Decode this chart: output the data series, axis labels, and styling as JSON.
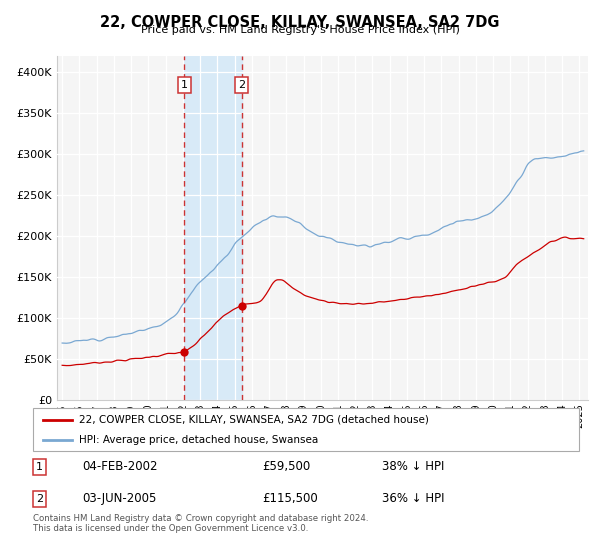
{
  "title": "22, COWPER CLOSE, KILLAY, SWANSEA, SA2 7DG",
  "subtitle": "Price paid vs. HM Land Registry's House Price Index (HPI)",
  "ylim": [
    0,
    420000
  ],
  "yticks": [
    0,
    50000,
    100000,
    150000,
    200000,
    250000,
    300000,
    350000,
    400000
  ],
  "ytick_labels": [
    "£0",
    "£50K",
    "£100K",
    "£150K",
    "£200K",
    "£250K",
    "£300K",
    "£350K",
    "£400K"
  ],
  "xlim_start": 1994.7,
  "xlim_end": 2025.5,
  "property_color": "#cc0000",
  "hpi_color": "#7aa8d2",
  "background_color": "#f5f5f5",
  "shaded_region_color": "#d8eaf7",
  "transaction1_date": 2002.09,
  "transaction1_price": 59500,
  "transaction2_date": 2005.42,
  "transaction2_price": 115500,
  "legend_property_label": "22, COWPER CLOSE, KILLAY, SWANSEA, SA2 7DG (detached house)",
  "legend_hpi_label": "HPI: Average price, detached house, Swansea",
  "transaction1_label": "04-FEB-2002",
  "transaction1_price_str": "£59,500",
  "transaction1_pct": "38% ↓ HPI",
  "transaction2_label": "03-JUN-2005",
  "transaction2_price_str": "£115,500",
  "transaction2_pct": "36% ↓ HPI",
  "footer": "Contains HM Land Registry data © Crown copyright and database right 2024.\nThis data is licensed under the Open Government Licence v3.0."
}
